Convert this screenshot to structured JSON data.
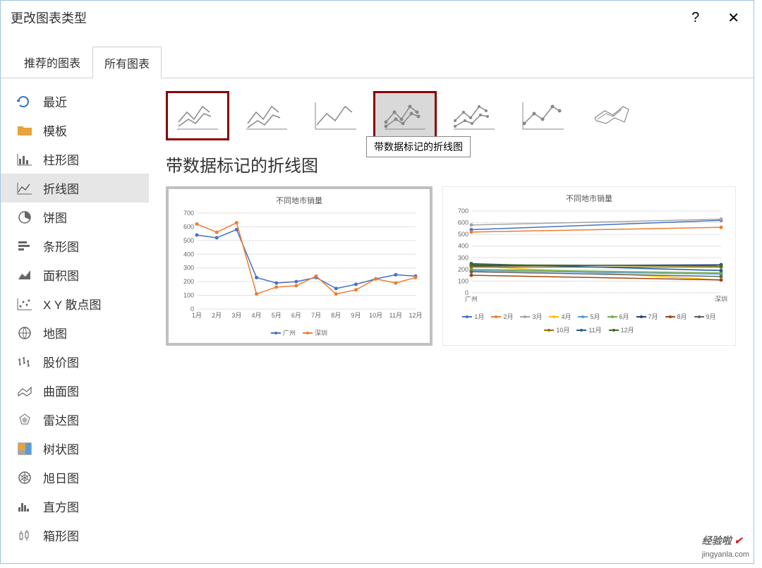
{
  "dialog": {
    "title": "更改图表类型",
    "help": "?",
    "close": "✕"
  },
  "tabs": [
    {
      "label": "推荐的图表",
      "active": false
    },
    {
      "label": "所有图表",
      "active": true
    }
  ],
  "sidebar": {
    "items": [
      {
        "label": "最近",
        "icon": "recent"
      },
      {
        "label": "模板",
        "icon": "folder"
      },
      {
        "label": "柱形图",
        "icon": "column"
      },
      {
        "label": "折线图",
        "icon": "line",
        "selected": true
      },
      {
        "label": "饼图",
        "icon": "pie"
      },
      {
        "label": "条形图",
        "icon": "bar"
      },
      {
        "label": "面积图",
        "icon": "area"
      },
      {
        "label": "X Y 散点图",
        "icon": "scatter"
      },
      {
        "label": "地图",
        "icon": "map"
      },
      {
        "label": "股价图",
        "icon": "stock"
      },
      {
        "label": "曲面图",
        "icon": "surface"
      },
      {
        "label": "雷达图",
        "icon": "radar"
      },
      {
        "label": "树状图",
        "icon": "treemap"
      },
      {
        "label": "旭日图",
        "icon": "sunburst"
      },
      {
        "label": "直方图",
        "icon": "histogram"
      },
      {
        "label": "箱形图",
        "icon": "box"
      }
    ]
  },
  "subtypes": {
    "tooltip": "带数据标记的折线图",
    "items": [
      {
        "hl": true,
        "sel": false
      },
      {
        "hl": false,
        "sel": false
      },
      {
        "hl": false,
        "sel": false
      },
      {
        "hl": true,
        "sel": true
      },
      {
        "hl": false,
        "sel": false
      },
      {
        "hl": false,
        "sel": false
      },
      {
        "hl": false,
        "sel": false
      }
    ]
  },
  "main_title": "带数据标记的折线图",
  "preview1": {
    "title": "不同地市销量",
    "type": "line",
    "x_labels": [
      "1月",
      "2月",
      "3月",
      "4月",
      "5月",
      "6月",
      "7月",
      "8月",
      "9月",
      "10月",
      "11月",
      "12月"
    ],
    "ylim": [
      0,
      700
    ],
    "ytick_step": 100,
    "y_ticks": [
      "0",
      "100",
      "200",
      "300",
      "400",
      "500",
      "600",
      "700"
    ],
    "grid_color": "#e0e0e0",
    "axis_color": "#b0b0b0",
    "text_color": "#666666",
    "font_size": 9,
    "series": [
      {
        "name": "广州",
        "color": "#4472c4",
        "values": [
          540,
          520,
          580,
          230,
          190,
          200,
          230,
          150,
          180,
          220,
          250,
          240
        ]
      },
      {
        "name": "深圳",
        "color": "#ed7d31",
        "values": [
          620,
          560,
          630,
          110,
          160,
          170,
          240,
          110,
          140,
          220,
          190,
          230
        ]
      }
    ]
  },
  "preview2": {
    "title": "不同地市销量",
    "type": "line",
    "x_labels": [
      "广州",
      "深圳"
    ],
    "ylim": [
      0,
      700
    ],
    "ytick_step": 100,
    "y_ticks": [
      "0",
      "100",
      "200",
      "300",
      "400",
      "500",
      "600",
      "700"
    ],
    "grid_color": "#e0e0e0",
    "axis_color": "#b0b0b0",
    "text_color": "#666666",
    "font_size": 9,
    "series": [
      {
        "name": "1月",
        "color": "#4472c4",
        "values": [
          540,
          620
        ]
      },
      {
        "name": "2月",
        "color": "#ed7d31",
        "values": [
          520,
          560
        ]
      },
      {
        "name": "3月",
        "color": "#a5a5a5",
        "values": [
          580,
          630
        ]
      },
      {
        "name": "4月",
        "color": "#ffc000",
        "values": [
          230,
          110
        ]
      },
      {
        "name": "5月",
        "color": "#5b9bd5",
        "values": [
          190,
          160
        ]
      },
      {
        "name": "6月",
        "color": "#70ad47",
        "values": [
          200,
          170
        ]
      },
      {
        "name": "7月",
        "color": "#264478",
        "values": [
          230,
          240
        ]
      },
      {
        "name": "8月",
        "color": "#9e480e",
        "values": [
          150,
          110
        ]
      },
      {
        "name": "9月",
        "color": "#636363",
        "values": [
          180,
          140
        ]
      },
      {
        "name": "10月",
        "color": "#997300",
        "values": [
          220,
          220
        ]
      },
      {
        "name": "11月",
        "color": "#255e91",
        "values": [
          250,
          190
        ]
      },
      {
        "name": "12月",
        "color": "#43682b",
        "values": [
          240,
          230
        ]
      }
    ]
  },
  "watermark": {
    "text": "经验啦",
    "url": "jingyanla.com"
  }
}
